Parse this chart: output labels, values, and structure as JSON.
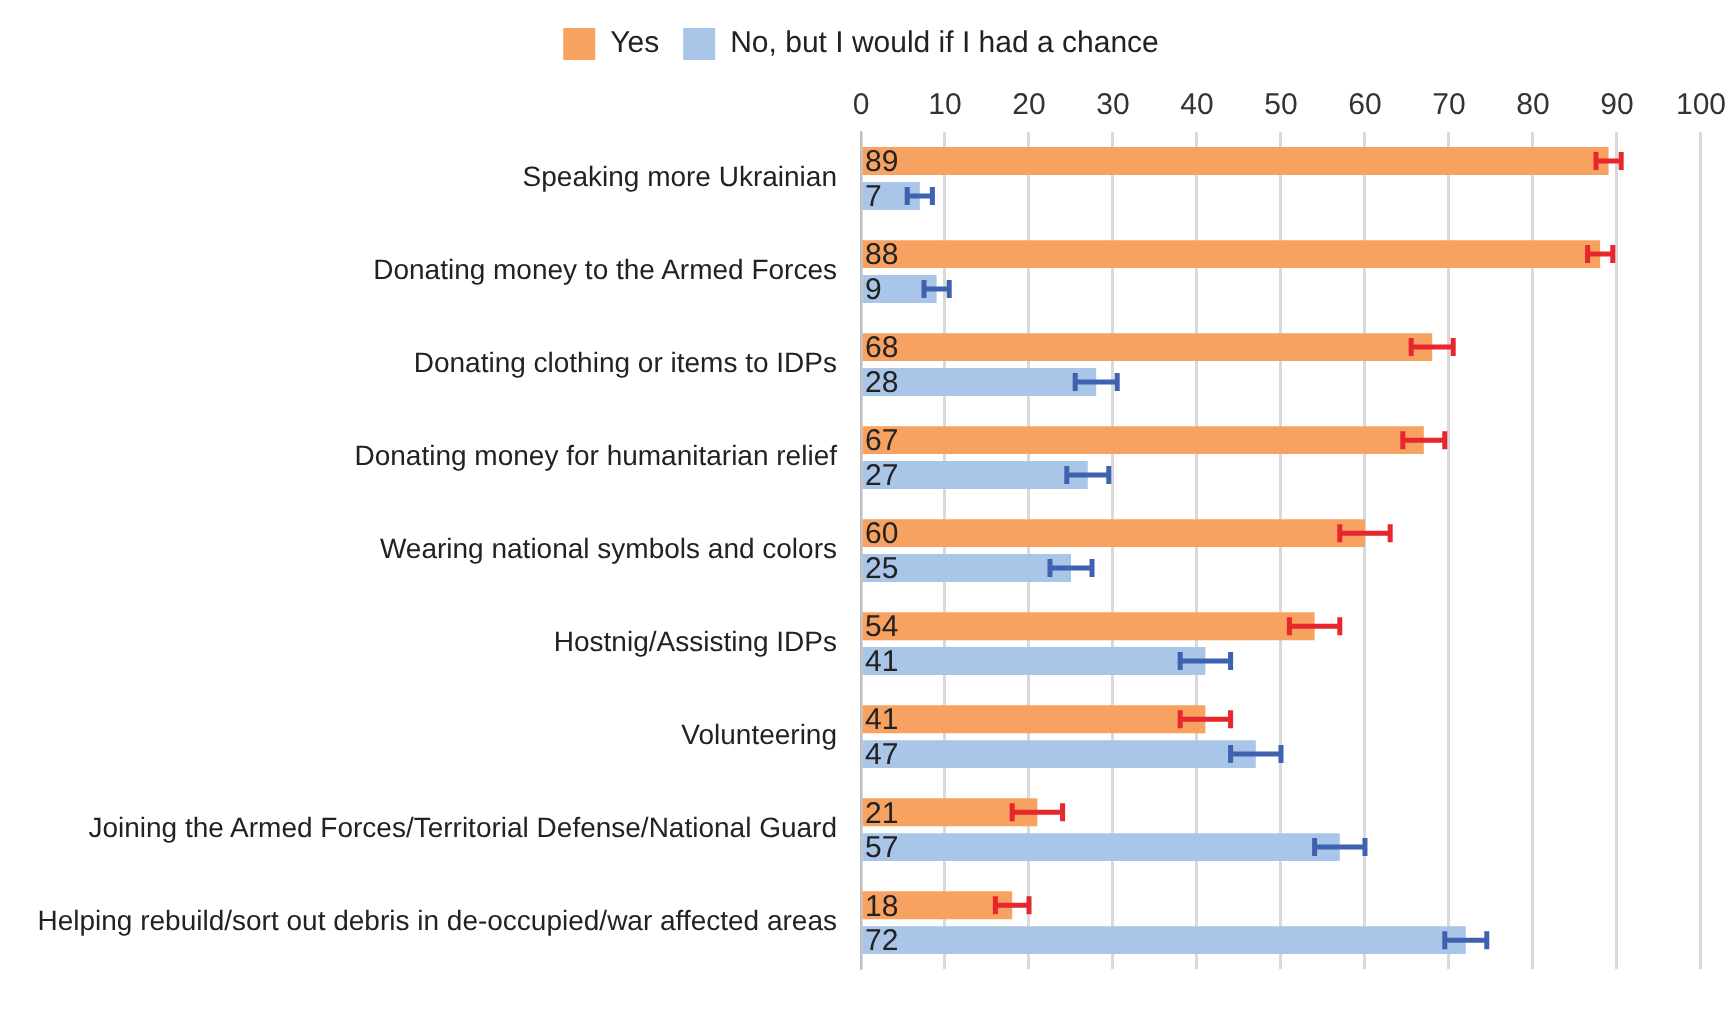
{
  "chart_data": {
    "type": "bar",
    "orientation": "horizontal",
    "categories": [
      "Speaking more Ukrainian",
      "Donating money to the Armed Forces",
      "Donating clothing or items to IDPs",
      "Donating money for humanitarian relief",
      "Wearing national symbols and colors",
      "Hostnig/Assisting IDPs",
      "Volunteering",
      "Joining the Armed Forces/Territorial Defense/National Guard",
      "Helping rebuild/sort out debris in de-occupied/war affected areas"
    ],
    "series": [
      {
        "name": "Yes",
        "color": "#f8a261",
        "values": [
          89,
          88,
          68,
          67,
          60,
          54,
          41,
          21,
          18
        ],
        "errors": [
          1.5,
          1.5,
          2.5,
          2.5,
          3,
          3,
          3,
          3,
          2
        ]
      },
      {
        "name": "No, but I would if I had a chance",
        "color": "#a9c5e8",
        "values": [
          7,
          9,
          28,
          27,
          25,
          41,
          47,
          57,
          72
        ],
        "errors": [
          1.5,
          1.5,
          2.5,
          2.5,
          2.5,
          3,
          3,
          3,
          2.5
        ]
      }
    ],
    "xlim": [
      0,
      100
    ],
    "xticks": [
      0,
      10,
      20,
      30,
      40,
      50,
      60,
      70,
      80,
      90,
      100
    ],
    "grid": "x",
    "legend": "top",
    "data_labels": true
  }
}
